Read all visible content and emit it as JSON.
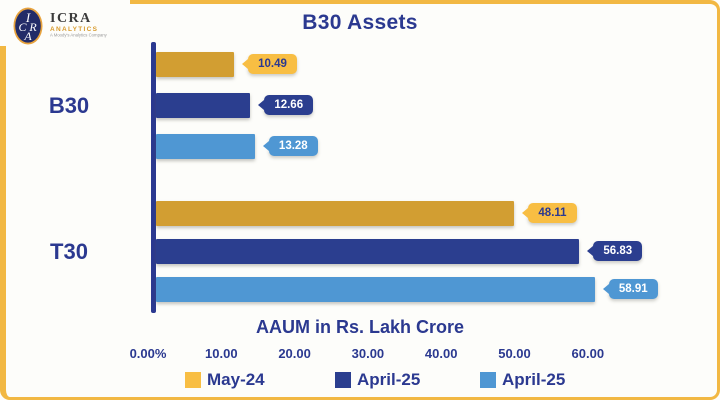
{
  "logo": {
    "monogram": [
      "I",
      "C",
      "R",
      "A"
    ],
    "name": "ICRA",
    "subtitle": "ANALYTICS",
    "tagline": "A Moody's Analytics Company"
  },
  "title": "B30 Assets",
  "colors": {
    "navy_text": "#2B3990",
    "gold_frame": "#F2B843",
    "background": "#FDFDFA"
  },
  "chart_data": {
    "type": "bar",
    "orientation": "horizontal",
    "title": "B30 Assets",
    "xlabel": "AAUM in Rs. Lakh Crore",
    "categories": [
      "B30",
      "T30"
    ],
    "series": [
      {
        "name": "May-24",
        "values": [
          10.49,
          48.11
        ],
        "bar_color": "#D29E32",
        "label_bg": "#F8BE43",
        "label_text": "#2B3990"
      },
      {
        "name": "April-25",
        "values": [
          12.66,
          56.83
        ],
        "bar_color": "#2B3E8F",
        "label_bg": "#2B3E8F",
        "label_text": "#FFFFFF"
      },
      {
        "name": "April-25",
        "values": [
          13.28,
          58.91
        ],
        "bar_color": "#4F97D3",
        "label_bg": "#4F97D3",
        "label_text": "#FFFFFF"
      }
    ],
    "x_ticks": [
      "0.00%",
      "10.00",
      "20.00",
      "30.00",
      "40.00",
      "50.00",
      "60.00"
    ],
    "xlim": [
      0,
      65
    ],
    "legend_position": "bottom",
    "data_labels": true,
    "grid": false
  }
}
